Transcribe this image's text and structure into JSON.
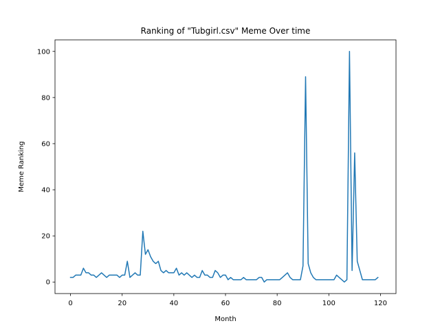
{
  "chart_data": {
    "type": "line",
    "title": "Ranking of \"Tubgirl.csv\" Meme Over time",
    "xlabel": "Month",
    "ylabel": "Meme Ranking",
    "xlim": [
      -6,
      126
    ],
    "ylim": [
      -5,
      105
    ],
    "xticks": [
      0,
      20,
      40,
      60,
      80,
      100,
      120
    ],
    "yticks": [
      0,
      20,
      40,
      60,
      80,
      100
    ],
    "grid": false,
    "line_color": "#1f77b4",
    "series": [
      {
        "x": [
          0,
          1,
          2,
          3,
          4,
          5,
          6,
          7,
          8,
          9,
          10,
          11,
          12,
          13,
          14,
          15,
          16,
          17,
          18,
          19,
          20,
          21,
          22,
          23,
          24,
          25,
          26,
          27,
          28,
          29,
          30,
          31,
          32,
          33,
          34,
          35,
          36,
          37,
          38,
          39,
          40,
          41,
          42,
          43,
          44,
          45,
          46,
          47,
          48,
          49,
          50,
          51,
          52,
          53,
          54,
          55,
          56,
          57,
          58,
          59,
          60,
          61,
          62,
          63,
          64,
          65,
          66,
          67,
          68,
          69,
          70,
          71,
          72,
          73,
          74,
          75,
          76,
          77,
          78,
          79,
          80,
          81,
          82,
          83,
          84,
          85,
          86,
          87,
          88,
          89,
          90,
          91,
          92,
          93,
          94,
          95,
          96,
          97,
          98,
          99,
          100,
          101,
          102,
          103,
          104,
          105,
          106,
          107,
          108,
          109,
          110,
          111,
          112,
          113,
          114,
          115,
          116,
          117,
          118,
          119
        ],
        "values": [
          2,
          2,
          3,
          3,
          3,
          6,
          4,
          4,
          3,
          3,
          2,
          3,
          4,
          3,
          2,
          3,
          3,
          3,
          3,
          2,
          3,
          3,
          9,
          2,
          3,
          4,
          3,
          3,
          22,
          12,
          14,
          11,
          9,
          8,
          9,
          5,
          4,
          5,
          4,
          4,
          4,
          6,
          3,
          4,
          3,
          4,
          3,
          2,
          3,
          2,
          2,
          5,
          3,
          3,
          2,
          2,
          5,
          4,
          2,
          3,
          3,
          1,
          2,
          1,
          1,
          1,
          1,
          2,
          1,
          1,
          1,
          1,
          1,
          2,
          2,
          0,
          1,
          1,
          1,
          1,
          1,
          1,
          2,
          3,
          4,
          2,
          1,
          1,
          1,
          1,
          7,
          89,
          8,
          4,
          2,
          1,
          1,
          1,
          1,
          1,
          1,
          1,
          1,
          3,
          2,
          1,
          0,
          1,
          100,
          5,
          56,
          9,
          5,
          1,
          1,
          1,
          1,
          1,
          1,
          2
        ]
      }
    ]
  }
}
